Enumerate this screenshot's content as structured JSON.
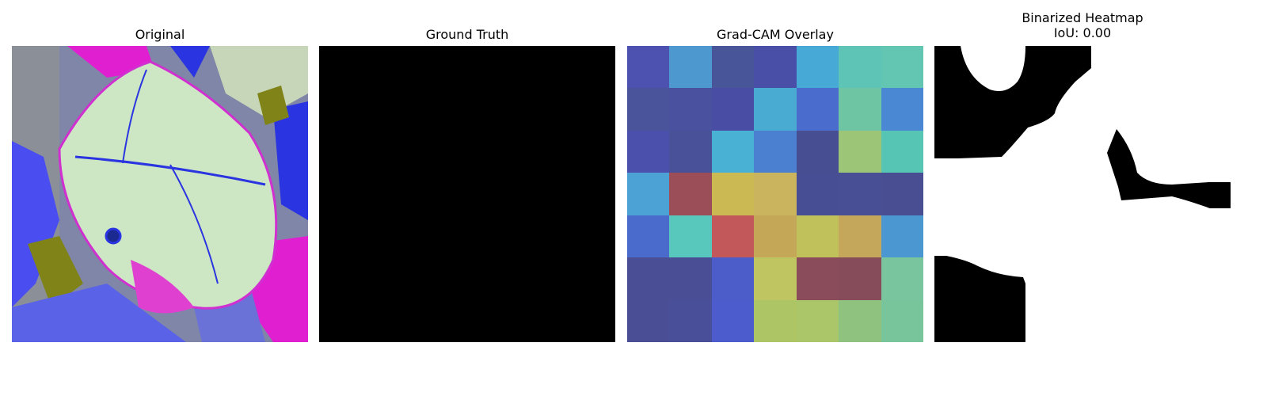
{
  "panels": [
    {
      "title": "Original"
    },
    {
      "title": "Ground Truth"
    },
    {
      "title": "Grad-CAM Overlay"
    },
    {
      "title": "Binarized Heatmap",
      "subtitle": "IoU: 0.00"
    }
  ],
  "gradcam": {
    "cells": [
      [
        "#3e42a8",
        "#3f8fcc",
        "#38478f",
        "#3a40a0",
        "#36a2d2",
        "#4fbfb0",
        "#56c1ac"
      ],
      [
        "#394592",
        "#3b4296",
        "#3a3f9c",
        "#3aa4ce",
        "#3b5fc8",
        "#62c09c",
        "#3b7ed0"
      ],
      [
        "#3c41a6",
        "#3a428f",
        "#3aaad0",
        "#3c74cc",
        "#373f88",
        "#94c06c",
        "#48c0ac"
      ],
      [
        "#3d9ad0",
        "#943f4a",
        "#c7b344",
        "#c6ae4f",
        "#383f8a",
        "#39408c",
        "#383f88"
      ],
      [
        "#3c5ec8",
        "#4ac2b6",
        "#be4a4c",
        "#c09f4a",
        "#bbbc4c",
        "#c0a04e",
        "#3b8ece"
      ],
      [
        "#393f8c",
        "#393f8c",
        "#3d4fc6",
        "#b8c054",
        "#803d4c",
        "#7c3d4c",
        "#6ec096"
      ],
      [
        "#393f8c",
        "#39408f",
        "#3d4ec8",
        "#a6c058",
        "#a4c05c",
        "#86bc74",
        "#6cc094"
      ]
    ]
  }
}
